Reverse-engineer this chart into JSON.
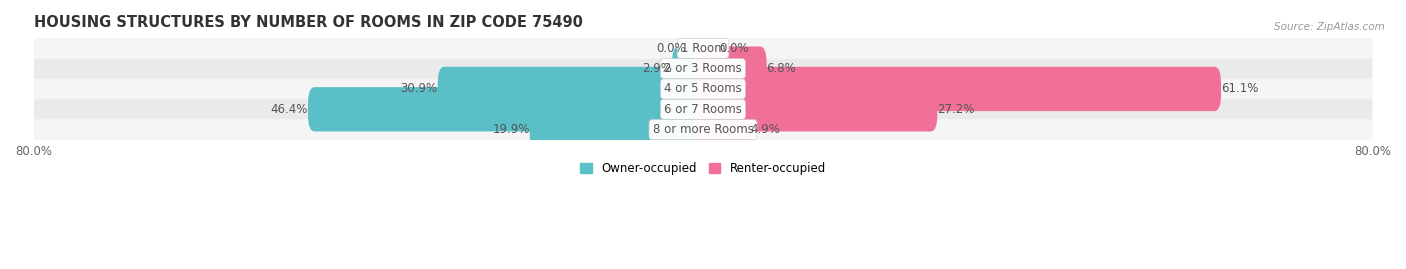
{
  "title": "HOUSING STRUCTURES BY NUMBER OF ROOMS IN ZIP CODE 75490",
  "source": "Source: ZipAtlas.com",
  "categories": [
    "1 Room",
    "2 or 3 Rooms",
    "4 or 5 Rooms",
    "6 or 7 Rooms",
    "8 or more Rooms"
  ],
  "owner_values": [
    0.0,
    2.9,
    30.9,
    46.4,
    19.9
  ],
  "renter_values": [
    0.0,
    6.8,
    61.1,
    27.2,
    4.9
  ],
  "owner_color": "#5bbfc8",
  "renter_color": "#f07098",
  "row_bg_light": "#f5f5f5",
  "row_bg_dark": "#eaeaea",
  "x_min": -80.0,
  "x_max": 80.0,
  "title_fontsize": 10.5,
  "label_fontsize": 8.5,
  "tick_fontsize": 8.5,
  "bar_height": 0.58,
  "left_label": "80.0%",
  "right_label": "80.0%"
}
